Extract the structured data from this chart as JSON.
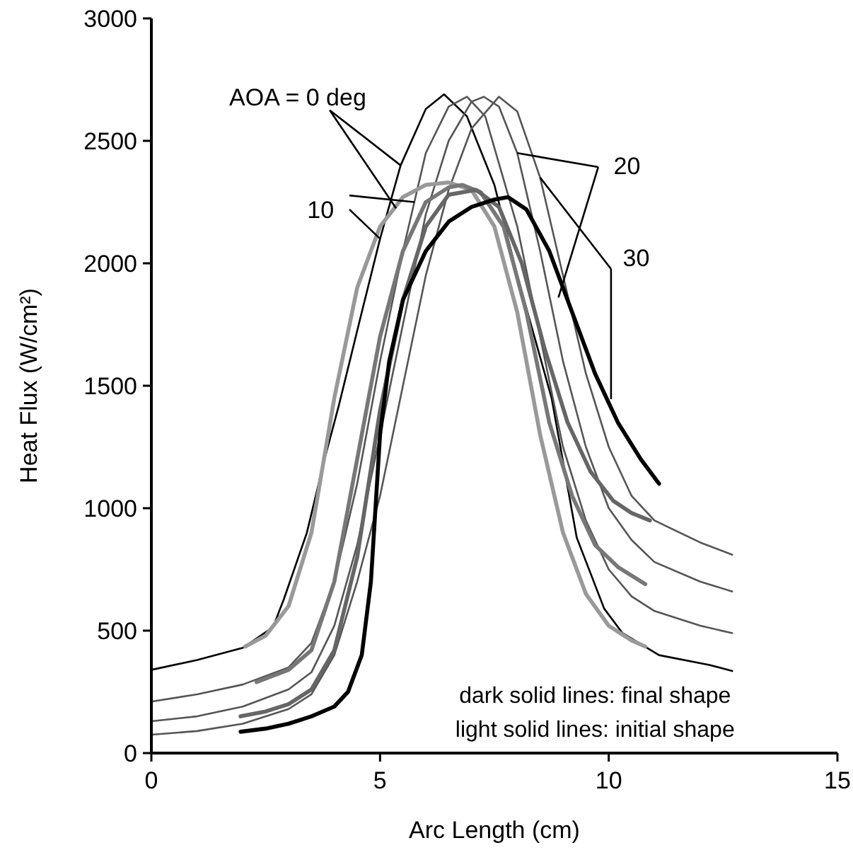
{
  "chart_data": {
    "type": "line",
    "xlabel": "Arc Length (cm)",
    "ylabel": "Heat Flux (W/cm²)",
    "xlim": [
      0,
      15
    ],
    "xticks": [
      0,
      5,
      10,
      15
    ],
    "ylim": [
      0,
      3000
    ],
    "yticks": [
      0,
      500,
      1000,
      1500,
      2000,
      2500,
      3000
    ],
    "grid": false,
    "marker": "none",
    "line_style": "solid",
    "series": [
      {
        "color": "#000000",
        "x": [
          0,
          1,
          2,
          2.66,
          2.9,
          3.4,
          3.8,
          4.1,
          4.6,
          5.0,
          5.45,
          6.0,
          6.4,
          6.9,
          7.5,
          8.0,
          8.75,
          9.3,
          9.9,
          10.3,
          11.1,
          12.2,
          12.7
        ],
        "values": [
          340,
          380,
          430,
          514,
          630,
          900,
          1210,
          1420,
          1800,
          2100,
          2400,
          2630,
          2690,
          2600,
          2320,
          1950,
          1450,
          880,
          590,
          490,
          400,
          360,
          335
        ]
      },
      {
        "color": "#555555",
        "x": [
          0,
          1,
          2,
          3,
          3.5,
          4,
          4.5,
          5,
          5.5,
          6,
          6.5,
          6.9,
          7.3,
          8,
          8.5,
          9,
          9.5,
          10,
          10.5,
          11,
          12,
          12.7
        ],
        "values": [
          210,
          240,
          280,
          350,
          450,
          700,
          1100,
          1600,
          2050,
          2450,
          2640,
          2680,
          2600,
          2150,
          1700,
          1250,
          950,
          750,
          640,
          580,
          520,
          490
        ]
      },
      {
        "color": "#555555",
        "x": [
          0,
          1,
          2,
          3,
          3.5,
          4,
          4.5,
          5,
          5.5,
          6,
          6.5,
          7,
          7.27,
          7.6,
          8,
          8.5,
          9,
          9.5,
          10,
          10.5,
          11,
          12,
          12.7
        ],
        "values": [
          130,
          150,
          190,
          260,
          330,
          520,
          850,
          1300,
          1750,
          2200,
          2500,
          2660,
          2680,
          2640,
          2450,
          2050,
          1600,
          1250,
          1000,
          870,
          780,
          700,
          660
        ]
      },
      {
        "color": "#555555",
        "x": [
          0,
          1,
          2,
          3,
          3.5,
          4,
          4.5,
          5,
          5.5,
          6,
          6.5,
          7,
          7.6,
          8,
          8.5,
          9,
          9.5,
          10,
          10.5,
          11,
          12,
          12.7
        ],
        "values": [
          75,
          90,
          120,
          180,
          240,
          400,
          700,
          1050,
          1500,
          1950,
          2300,
          2550,
          2680,
          2620,
          2350,
          1950,
          1550,
          1250,
          1050,
          950,
          860,
          810
        ]
      },
      {
        "color": "#999999",
        "x": [
          2.05,
          2.5,
          3,
          3.5,
          4,
          4.5,
          5,
          5.5,
          6,
          6.5,
          7,
          7.5,
          8,
          8.5,
          9,
          9.5,
          10,
          10.5,
          10.8
        ],
        "values": [
          435,
          480,
          600,
          900,
          1450,
          1900,
          2150,
          2270,
          2320,
          2330,
          2300,
          2150,
          1800,
          1300,
          900,
          650,
          520,
          460,
          435
        ]
      },
      {
        "color": "#777777",
        "x": [
          2.3,
          3,
          3.5,
          4,
          4.5,
          5,
          5.5,
          6,
          6.5,
          6.8,
          7.2,
          7.7,
          8.2,
          8.7,
          9.2,
          9.7,
          10.2,
          10.8
        ],
        "values": [
          290,
          340,
          420,
          700,
          1200,
          1700,
          2050,
          2250,
          2310,
          2320,
          2290,
          2150,
          1800,
          1350,
          1050,
          850,
          760,
          690
        ]
      },
      {
        "color": "#666666",
        "x": [
          1.95,
          2.5,
          3,
          3.5,
          4,
          4.5,
          5,
          5.5,
          6,
          6.5,
          7.1,
          7.6,
          8.1,
          8.6,
          9.1,
          9.6,
          10.1,
          10.5,
          10.9
        ],
        "values": [
          150,
          170,
          200,
          260,
          420,
          800,
          1400,
          1850,
          2150,
          2280,
          2300,
          2230,
          2000,
          1650,
          1350,
          1150,
          1030,
          980,
          950
        ]
      },
      {
        "color": "#000000",
        "x": [
          1.95,
          2.5,
          3,
          3.5,
          4,
          4.3,
          4.6,
          4.8,
          5,
          5.2,
          5.5,
          6,
          6.5,
          7,
          7.5,
          7.8,
          8.2,
          8.7,
          9.2,
          9.7,
          10.2,
          10.7,
          11.1
        ],
        "values": [
          87,
          100,
          120,
          150,
          190,
          250,
          400,
          700,
          1300,
          1600,
          1850,
          2050,
          2170,
          2230,
          2260,
          2270,
          2220,
          2050,
          1800,
          1550,
          1350,
          1200,
          1100
        ]
      }
    ],
    "annotations": [
      {
        "text": "AOA = 0 deg",
        "x": 5.45,
        "y": 2400
      },
      {
        "text": "10",
        "x": 5,
        "y": 2100
      },
      {
        "text": "20",
        "x": 8,
        "y": 2450
      },
      {
        "text": "30",
        "x": 8.5,
        "y": 2350
      },
      "dark solid lines: final shape",
      "light solid lines: initial shape"
    ]
  }
}
